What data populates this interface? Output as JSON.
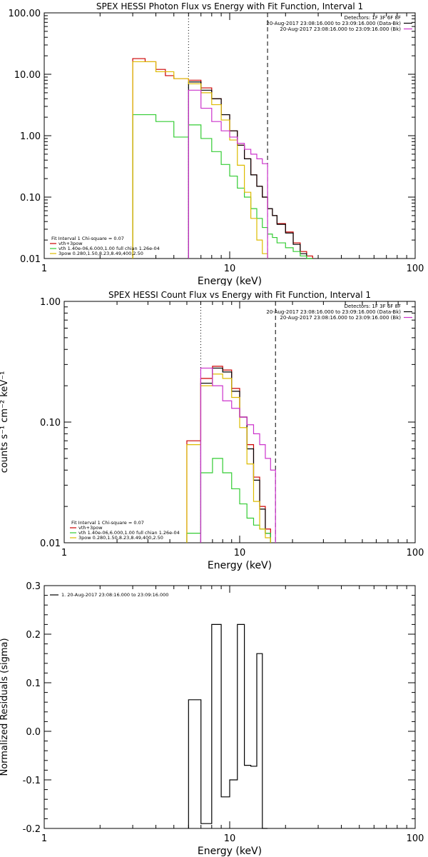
{
  "chart_data": [
    {
      "type": "line",
      "title": "SPEX HESSI Photon Flux vs Energy with Fit Function, Interval 1",
      "xlabel": "Energy (keV)",
      "ylabel": "",
      "xscale": "log",
      "yscale": "log",
      "xlim": [
        1,
        100
      ],
      "ylim": [
        0.01,
        100
      ],
      "xticks": [
        {
          "value": 1,
          "label": "1"
        },
        {
          "value": 10,
          "label": "10"
        },
        {
          "value": 100,
          "label": "100"
        }
      ],
      "yticks": [
        {
          "value": 0.01,
          "label": "0.01"
        },
        {
          "value": 0.1,
          "label": "0.10"
        },
        {
          "value": 1,
          "label": "1.00"
        },
        {
          "value": 10,
          "label": "10.00"
        },
        {
          "value": 100,
          "label": "100.00"
        }
      ],
      "vlines": [
        {
          "x": 6.0,
          "style": "dotted"
        },
        {
          "x": 16.0,
          "style": "dashed"
        }
      ],
      "header": {
        "detectors": "Detectors: 1F 3F 6F 8F",
        "lines": [
          {
            "text": "20-Aug-2017 23:08:16.000 to 23:09:16.000 (Data-Bk)",
            "color": "#000000"
          },
          {
            "text": "20-Aug-2017 23:08:16.000 to 23:09:16.000 (Bk)",
            "color": "#cc33cc"
          }
        ]
      },
      "legend": [
        {
          "text": "Fit Interval 1    Chi-square = 0.07",
          "color": "#000000",
          "line": false
        },
        {
          "text": "vth+3pow",
          "color": "#cc0000",
          "line": true
        },
        {
          "text": "vth 1.40e-06,6.000,1.00  full chian 1.26e-04",
          "color": "#33cc33",
          "line": true
        },
        {
          "text": "3pow 0.280,1.50,8.23,8.49,400,2.50",
          "color": "#ddbb00",
          "line": true
        }
      ],
      "series": [
        {
          "color": "#cc0000",
          "edges": [
            3.0,
            3.5,
            4.0,
            4.5,
            5.0,
            6.0,
            7.0,
            8.0,
            9.0,
            10.0,
            11.0,
            12.0,
            13.0,
            14.0,
            15.0,
            16.0,
            17.0,
            18.0,
            20.0,
            22.0,
            24.0,
            26.0,
            28.0
          ],
          "values": [
            18.0,
            16.0,
            12.0,
            9.5,
            8.5,
            8.0,
            6.0,
            4.0,
            2.2,
            1.2,
            0.7,
            0.42,
            0.23,
            0.15,
            0.1,
            0.065,
            0.05,
            0.037,
            0.027,
            0.018,
            0.013,
            0.011
          ]
        },
        {
          "color": "#000000",
          "edges": [
            6.0,
            7.0,
            8.0,
            9.0,
            10.0,
            11.0,
            12.0,
            13.0,
            14.0,
            15.0,
            16.0,
            17.0,
            18.0,
            20.0,
            22.0,
            24.0,
            26.0,
            28.0
          ],
          "values": [
            7.5,
            5.5,
            4.0,
            2.2,
            1.2,
            0.7,
            0.42,
            0.23,
            0.15,
            0.1,
            0.065,
            0.05,
            0.036,
            0.026,
            0.017,
            0.012,
            0.01
          ]
        },
        {
          "color": "#33cc33",
          "edges": [
            3.0,
            4.0,
            5.0,
            6.0,
            7.0,
            8.0,
            9.0,
            10.0,
            11.0,
            12.0,
            13.0,
            14.0,
            15.0,
            16.0,
            17.0,
            18.0,
            20.0,
            22.0,
            24.0,
            26.0,
            28.0
          ],
          "values": [
            2.2,
            1.7,
            0.95,
            1.5,
            0.9,
            0.55,
            0.34,
            0.22,
            0.14,
            0.1,
            0.065,
            0.045,
            0.032,
            0.025,
            0.022,
            0.018,
            0.015,
            0.013,
            0.011,
            0.01
          ]
        },
        {
          "color": "#ddbb00",
          "edges": [
            3.0,
            4.0,
            5.0,
            6.0,
            7.0,
            8.0,
            9.0,
            10.0,
            11.0,
            12.0,
            13.0,
            14.0,
            15.0,
            16.0
          ],
          "values": [
            16.0,
            11.0,
            8.5,
            7.0,
            5.0,
            3.2,
            1.8,
            0.85,
            0.33,
            0.12,
            0.045,
            0.02,
            0.012
          ]
        },
        {
          "color": "#cc33cc",
          "edges": [
            6.0,
            7.0,
            8.0,
            9.0,
            10.0,
            11.0,
            12.0,
            13.0,
            14.0,
            15.0,
            16.0
          ],
          "values": [
            5.5,
            2.8,
            1.7,
            1.2,
            0.95,
            0.75,
            0.6,
            0.5,
            0.42,
            0.35
          ]
        }
      ]
    },
    {
      "type": "line",
      "title": "SPEX HESSI Count Flux vs Energy with Fit Function, Interval 1",
      "xlabel": "Energy (keV)",
      "ylabel": "counts s⁻¹ cm⁻² keV⁻¹",
      "xscale": "log",
      "yscale": "log",
      "xlim": [
        1,
        100
      ],
      "ylim": [
        0.01,
        1
      ],
      "xticks": [
        {
          "value": 1,
          "label": "1"
        },
        {
          "value": 10,
          "label": "10"
        },
        {
          "value": 100,
          "label": "100"
        }
      ],
      "yticks": [
        {
          "value": 0.01,
          "label": "0.01"
        },
        {
          "value": 0.1,
          "label": "0.10"
        },
        {
          "value": 1,
          "label": "1.00"
        }
      ],
      "vlines": [
        {
          "x": 6.0,
          "style": "dotted"
        },
        {
          "x": 16.0,
          "style": "dashed"
        }
      ],
      "header": {
        "detectors": "Detectors: 1F 3F 6F 8F",
        "lines": [
          {
            "text": "20-Aug-2017 23:08:16.000 to 23:09:16.000 (Data-Bk)",
            "color": "#000000"
          },
          {
            "text": "20-Aug-2017 23:08:16.000 to 23:09:16.000 (Bk)",
            "color": "#cc33cc"
          }
        ]
      },
      "legend": [
        {
          "text": "Fit Interval 1    Chi-square = 0.07",
          "color": "#000000",
          "line": false
        },
        {
          "text": "vth+3pow",
          "color": "#cc0000",
          "line": true
        },
        {
          "text": "vth 1.40e-06,6.000,1.00  full chian 1.26e-04",
          "color": "#33cc33",
          "line": true
        },
        {
          "text": "3pow 0.280,1.50,8.23,8.49,400,2.50",
          "color": "#ddbb00",
          "line": true
        }
      ],
      "series": [
        {
          "color": "#cc0000",
          "edges": [
            5.0,
            6.0,
            7.0,
            8.0,
            9.0,
            10.0,
            11.0,
            12.0,
            13.0,
            14.0,
            15.0
          ],
          "values": [
            0.07,
            0.23,
            0.29,
            0.27,
            0.19,
            0.11,
            0.065,
            0.035,
            0.02,
            0.013
          ]
        },
        {
          "color": "#000000",
          "edges": [
            6.0,
            7.0,
            8.0,
            9.0,
            10.0,
            11.0,
            12.0,
            13.0,
            14.0,
            15.0
          ],
          "values": [
            0.21,
            0.28,
            0.26,
            0.18,
            0.11,
            0.06,
            0.033,
            0.019,
            0.012
          ]
        },
        {
          "color": "#33cc33",
          "edges": [
            5.0,
            6.0,
            7.0,
            8.0,
            9.0,
            10.0,
            11.0,
            12.0,
            13.0,
            14.0,
            15.0
          ],
          "values": [
            0.012,
            0.038,
            0.05,
            0.038,
            0.028,
            0.021,
            0.016,
            0.014,
            0.013,
            0.012
          ]
        },
        {
          "color": "#ddbb00",
          "edges": [
            5.0,
            6.0,
            7.0,
            8.0,
            9.0,
            10.0,
            11.0,
            12.0,
            13.0,
            14.0,
            15.0
          ],
          "values": [
            0.065,
            0.2,
            0.25,
            0.23,
            0.16,
            0.09,
            0.045,
            0.022,
            0.013,
            0.011
          ]
        },
        {
          "color": "#cc33cc",
          "edges": [
            6.0,
            7.0,
            8.0,
            9.0,
            10.0,
            11.0,
            12.0,
            13.0,
            14.0,
            15.0,
            16.0
          ],
          "values": [
            0.28,
            0.2,
            0.15,
            0.13,
            0.11,
            0.095,
            0.08,
            0.065,
            0.05,
            0.04
          ]
        }
      ]
    },
    {
      "type": "line",
      "title": "",
      "xlabel": "Energy (keV)",
      "ylabel": "Normalized Residuals (sigma)",
      "xscale": "log",
      "yscale": "linear",
      "xlim": [
        1,
        100
      ],
      "ylim": [
        -0.2,
        0.3
      ],
      "xticks": [
        {
          "value": 1,
          "label": "1"
        },
        {
          "value": 10,
          "label": "10"
        },
        {
          "value": 100,
          "label": "100"
        }
      ],
      "yticks": [
        {
          "value": -0.2,
          "label": "-0.2"
        },
        {
          "value": -0.1,
          "label": "-0.1"
        },
        {
          "value": 0.0,
          "label": "0.0"
        },
        {
          "value": 0.1,
          "label": "0.1"
        },
        {
          "value": 0.2,
          "label": "0.2"
        },
        {
          "value": 0.3,
          "label": "0.3"
        }
      ],
      "vlines": [],
      "header": {
        "detectors": "",
        "lines": []
      },
      "legend": [
        {
          "text": "1. 20-Aug-2017 23:08:16.000 to 23:09:16.000",
          "color": "#000000",
          "line": true
        }
      ],
      "series": [
        {
          "color": "#000000",
          "edges": [
            6.0,
            7.0,
            8.0,
            9.0,
            10.0,
            11.0,
            12.0,
            13.0,
            14.0,
            15.0,
            16.0
          ],
          "values": [
            0.065,
            -0.19,
            0.22,
            -0.135,
            -0.1,
            0.22,
            -0.07,
            -0.072,
            0.16,
            -0.2
          ],
          "baseline": -0.2
        }
      ]
    }
  ]
}
